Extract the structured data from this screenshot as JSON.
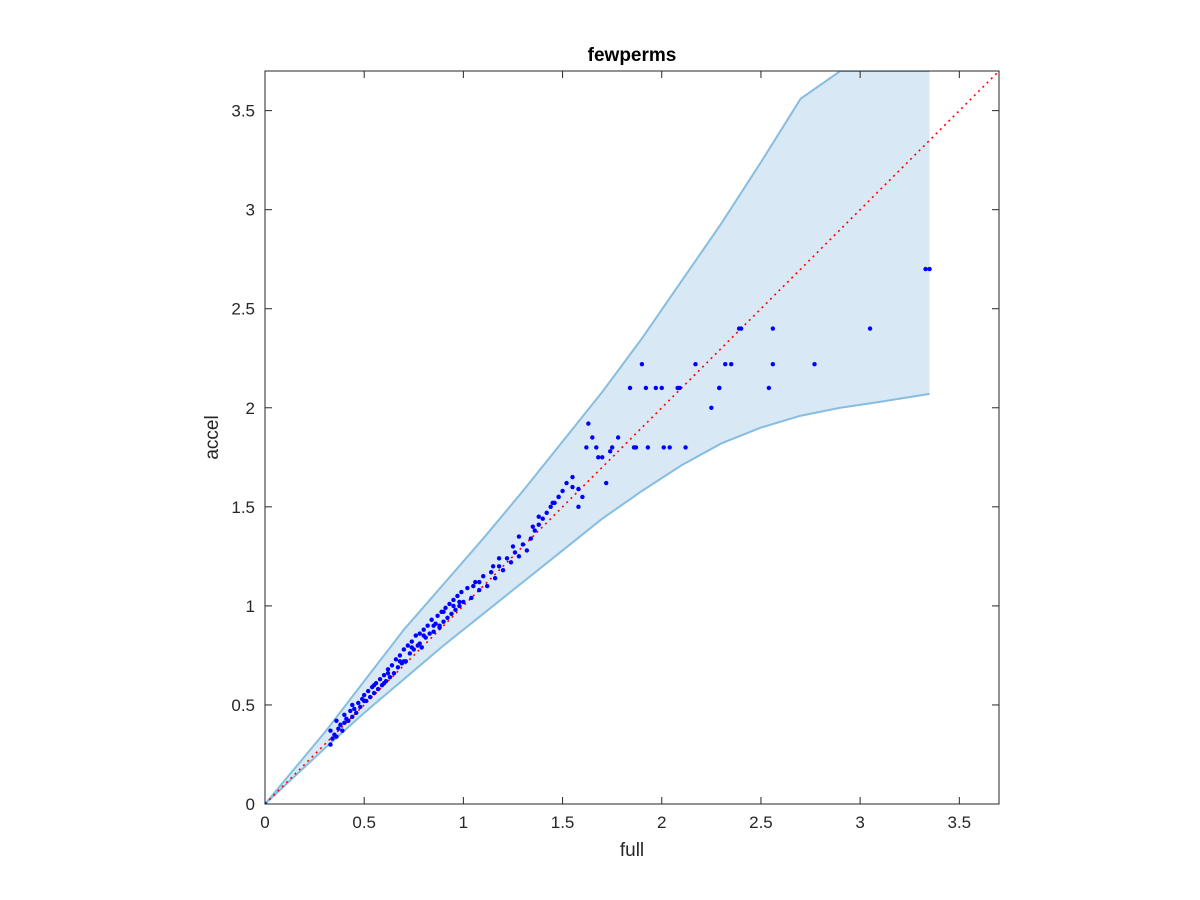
{
  "chart_data": {
    "type": "scatter",
    "title": "fewperms",
    "xlabel": "full",
    "ylabel": "accel",
    "xlim": [
      0,
      3.7
    ],
    "ylim": [
      0,
      3.7
    ],
    "xticks": [
      0,
      0.5,
      1,
      1.5,
      2,
      2.5,
      3,
      3.5
    ],
    "yticks": [
      0,
      0.5,
      1,
      1.5,
      2,
      2.5,
      3,
      3.5
    ],
    "xtick_labels": [
      "0",
      "0.5",
      "1",
      "1.5",
      "2",
      "2.5",
      "3",
      "3.5"
    ],
    "ytick_labels": [
      "0",
      "0.5",
      "1",
      "1.5",
      "2",
      "2.5",
      "3",
      "3.5"
    ],
    "grid": false,
    "colors": {
      "points": "#0000ff",
      "band_fill": "#d8e8f4",
      "band_edge": "#86bde0",
      "reference": "#ff0000",
      "axis": "#262626"
    },
    "band": {
      "x": [
        0,
        0.3,
        0.5,
        0.7,
        0.9,
        1.1,
        1.3,
        1.5,
        1.7,
        1.9,
        2.1,
        2.3,
        2.5,
        2.7,
        2.9,
        3.1,
        3.35
      ],
      "upper": [
        0,
        0.36,
        0.62,
        0.88,
        1.11,
        1.34,
        1.58,
        1.83,
        2.08,
        2.35,
        2.64,
        2.93,
        3.24,
        3.56,
        3.7,
        3.7,
        3.7
      ],
      "lower": [
        0,
        0.28,
        0.46,
        0.63,
        0.8,
        0.96,
        1.12,
        1.28,
        1.44,
        1.58,
        1.71,
        1.82,
        1.9,
        1.96,
        2.0,
        2.03,
        2.07
      ]
    },
    "reference_line": {
      "x": [
        0,
        3.7
      ],
      "y": [
        0,
        3.7
      ]
    },
    "series": [
      {
        "x": [
          0.0,
          0.33,
          0.34,
          0.35,
          0.33,
          0.36,
          0.37,
          0.38,
          0.36,
          0.39,
          0.4,
          0.41,
          0.4,
          0.42,
          0.43,
          0.44,
          0.45,
          0.46,
          0.44,
          0.47,
          0.48,
          0.49,
          0.5,
          0.51,
          0.52,
          0.53,
          0.54,
          0.55,
          0.56,
          0.57,
          0.58,
          0.59,
          0.6,
          0.61,
          0.62,
          0.63,
          0.64,
          0.65,
          0.66,
          0.67,
          0.68,
          0.69,
          0.7,
          0.71,
          0.72,
          0.73,
          0.74,
          0.75,
          0.76,
          0.77,
          0.78,
          0.79,
          0.8,
          0.81,
          0.82,
          0.83,
          0.84,
          0.85,
          0.86,
          0.87,
          0.88,
          0.89,
          0.9,
          0.91,
          0.92,
          0.93,
          0.94,
          0.95,
          0.96,
          0.97,
          0.98,
          0.99,
          1.0,
          1.02,
          1.04,
          1.06,
          1.08,
          1.1,
          1.12,
          1.14,
          1.16,
          1.18,
          1.2,
          1.22,
          1.24,
          1.26,
          1.28,
          1.3,
          1.32,
          1.34,
          1.36,
          1.38,
          1.4,
          1.42,
          1.44,
          1.46,
          1.48,
          1.5,
          1.52,
          1.55,
          1.58,
          1.6,
          1.63,
          1.65,
          1.67,
          1.7,
          1.72,
          1.75,
          1.78,
          1.84,
          1.87,
          1.9,
          1.93,
          1.97,
          2.01,
          2.04,
          2.08,
          2.12,
          2.17,
          2.25,
          2.29,
          2.32,
          2.35,
          2.4,
          2.54,
          2.56,
          2.77,
          3.05,
          3.33,
          3.35,
          0.55,
          0.62,
          0.68,
          0.74,
          0.8,
          0.85,
          0.9,
          0.95,
          1.05,
          1.15,
          1.25,
          1.35,
          1.45,
          1.55,
          1.62,
          1.68,
          1.74,
          1.86,
          1.92,
          2.0,
          2.09,
          2.29,
          2.39,
          2.56,
          0.5,
          0.6,
          0.7,
          0.78,
          0.88,
          0.98,
          1.08,
          1.18,
          1.28,
          1.38,
          1.48,
          1.58
        ],
        "y": [
          0.0,
          0.3,
          0.33,
          0.35,
          0.37,
          0.34,
          0.38,
          0.4,
          0.42,
          0.37,
          0.41,
          0.43,
          0.45,
          0.42,
          0.47,
          0.44,
          0.48,
          0.46,
          0.5,
          0.51,
          0.49,
          0.53,
          0.55,
          0.52,
          0.57,
          0.54,
          0.59,
          0.56,
          0.61,
          0.58,
          0.63,
          0.6,
          0.65,
          0.62,
          0.68,
          0.64,
          0.7,
          0.66,
          0.73,
          0.69,
          0.75,
          0.71,
          0.78,
          0.72,
          0.8,
          0.76,
          0.82,
          0.78,
          0.85,
          0.8,
          0.86,
          0.79,
          0.88,
          0.84,
          0.9,
          0.86,
          0.93,
          0.87,
          0.91,
          0.95,
          0.89,
          0.97,
          0.92,
          0.99,
          0.94,
          1.01,
          0.96,
          1.03,
          0.98,
          1.05,
          1.0,
          1.07,
          1.02,
          1.09,
          1.04,
          1.12,
          1.08,
          1.15,
          1.1,
          1.17,
          1.14,
          1.2,
          1.18,
          1.24,
          1.22,
          1.27,
          1.25,
          1.31,
          1.28,
          1.34,
          1.38,
          1.41,
          1.44,
          1.47,
          1.5,
          1.52,
          1.55,
          1.58,
          1.62,
          1.65,
          1.59,
          1.55,
          1.92,
          1.85,
          1.8,
          1.75,
          1.62,
          1.8,
          1.85,
          2.1,
          1.8,
          2.22,
          1.8,
          2.1,
          1.8,
          1.8,
          2.1,
          1.8,
          2.22,
          2.0,
          2.1,
          2.22,
          2.22,
          2.4,
          2.1,
          2.22,
          2.22,
          2.4,
          2.7,
          2.7,
          0.6,
          0.66,
          0.72,
          0.79,
          0.85,
          0.9,
          0.97,
          1.0,
          1.1,
          1.2,
          1.3,
          1.4,
          1.52,
          1.6,
          1.8,
          1.75,
          1.78,
          1.8,
          2.1,
          2.1,
          2.1,
          2.1,
          2.4,
          2.4,
          0.52,
          0.61,
          0.72,
          0.81,
          0.9,
          1.02,
          1.12,
          1.24,
          1.35,
          1.45,
          1.55,
          1.5
        ]
      }
    ]
  }
}
